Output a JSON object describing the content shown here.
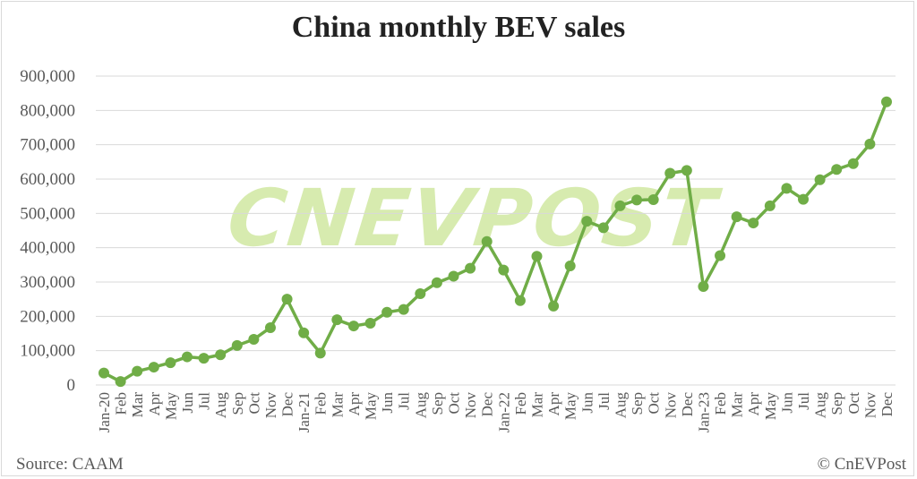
{
  "header": {
    "title": "China monthly BEV sales"
  },
  "footer": {
    "source": "Source: CAAM",
    "copyright": "© CnEVPost"
  },
  "watermark": {
    "text": "CNEVPOST"
  },
  "colors": {
    "line": "#70ad47",
    "grid": "#d9d9d9",
    "axis_text": "#595959",
    "watermark": "#b7dc6e"
  },
  "chart_data": {
    "type": "line",
    "title": "China monthly BEV sales",
    "xlabel": "",
    "ylabel": "",
    "ylim": [
      0,
      900000
    ],
    "yticks": [
      0,
      100000,
      200000,
      300000,
      400000,
      500000,
      600000,
      700000,
      800000,
      900000
    ],
    "ytick_labels": [
      "0",
      "100,000",
      "200,000",
      "300,000",
      "400,000",
      "500,000",
      "600,000",
      "700,000",
      "800,000",
      "900,000"
    ],
    "grid": true,
    "legend": "none",
    "categories": [
      "Jan-20",
      "Feb",
      "Mar",
      "Apr",
      "May",
      "Jun",
      "Jul",
      "Aug",
      "Sep",
      "Oct",
      "Nov",
      "Dec",
      "Jan-21",
      "Feb",
      "Mar",
      "Apr",
      "May",
      "Jun",
      "Jul",
      "Aug",
      "Sep",
      "Oct",
      "Nov",
      "Dec",
      "Jan-22",
      "Feb",
      "Mar",
      "Apr",
      "May",
      "Jun",
      "Jul",
      "Aug",
      "Sep",
      "Oct",
      "Nov",
      "Dec",
      "Jan-23",
      "Feb",
      "Mar",
      "Apr",
      "May",
      "Jun",
      "Jul",
      "Aug",
      "Sep",
      "Oct",
      "Nov",
      "Dec"
    ],
    "series": [
      {
        "values": [
          35000,
          10000,
          40000,
          52000,
          65000,
          82000,
          78000,
          88000,
          115000,
          133000,
          167000,
          250000,
          152000,
          93000,
          190000,
          172000,
          180000,
          212000,
          220000,
          266000,
          298000,
          317000,
          340000,
          418000,
          335000,
          246000,
          375000,
          230000,
          347000,
          477000,
          458000,
          522000,
          539000,
          540000,
          617000,
          625000,
          287000,
          377000,
          490000,
          472000,
          522000,
          573000,
          541000,
          598000,
          628000,
          645000,
          702000,
          825000
        ]
      }
    ]
  }
}
